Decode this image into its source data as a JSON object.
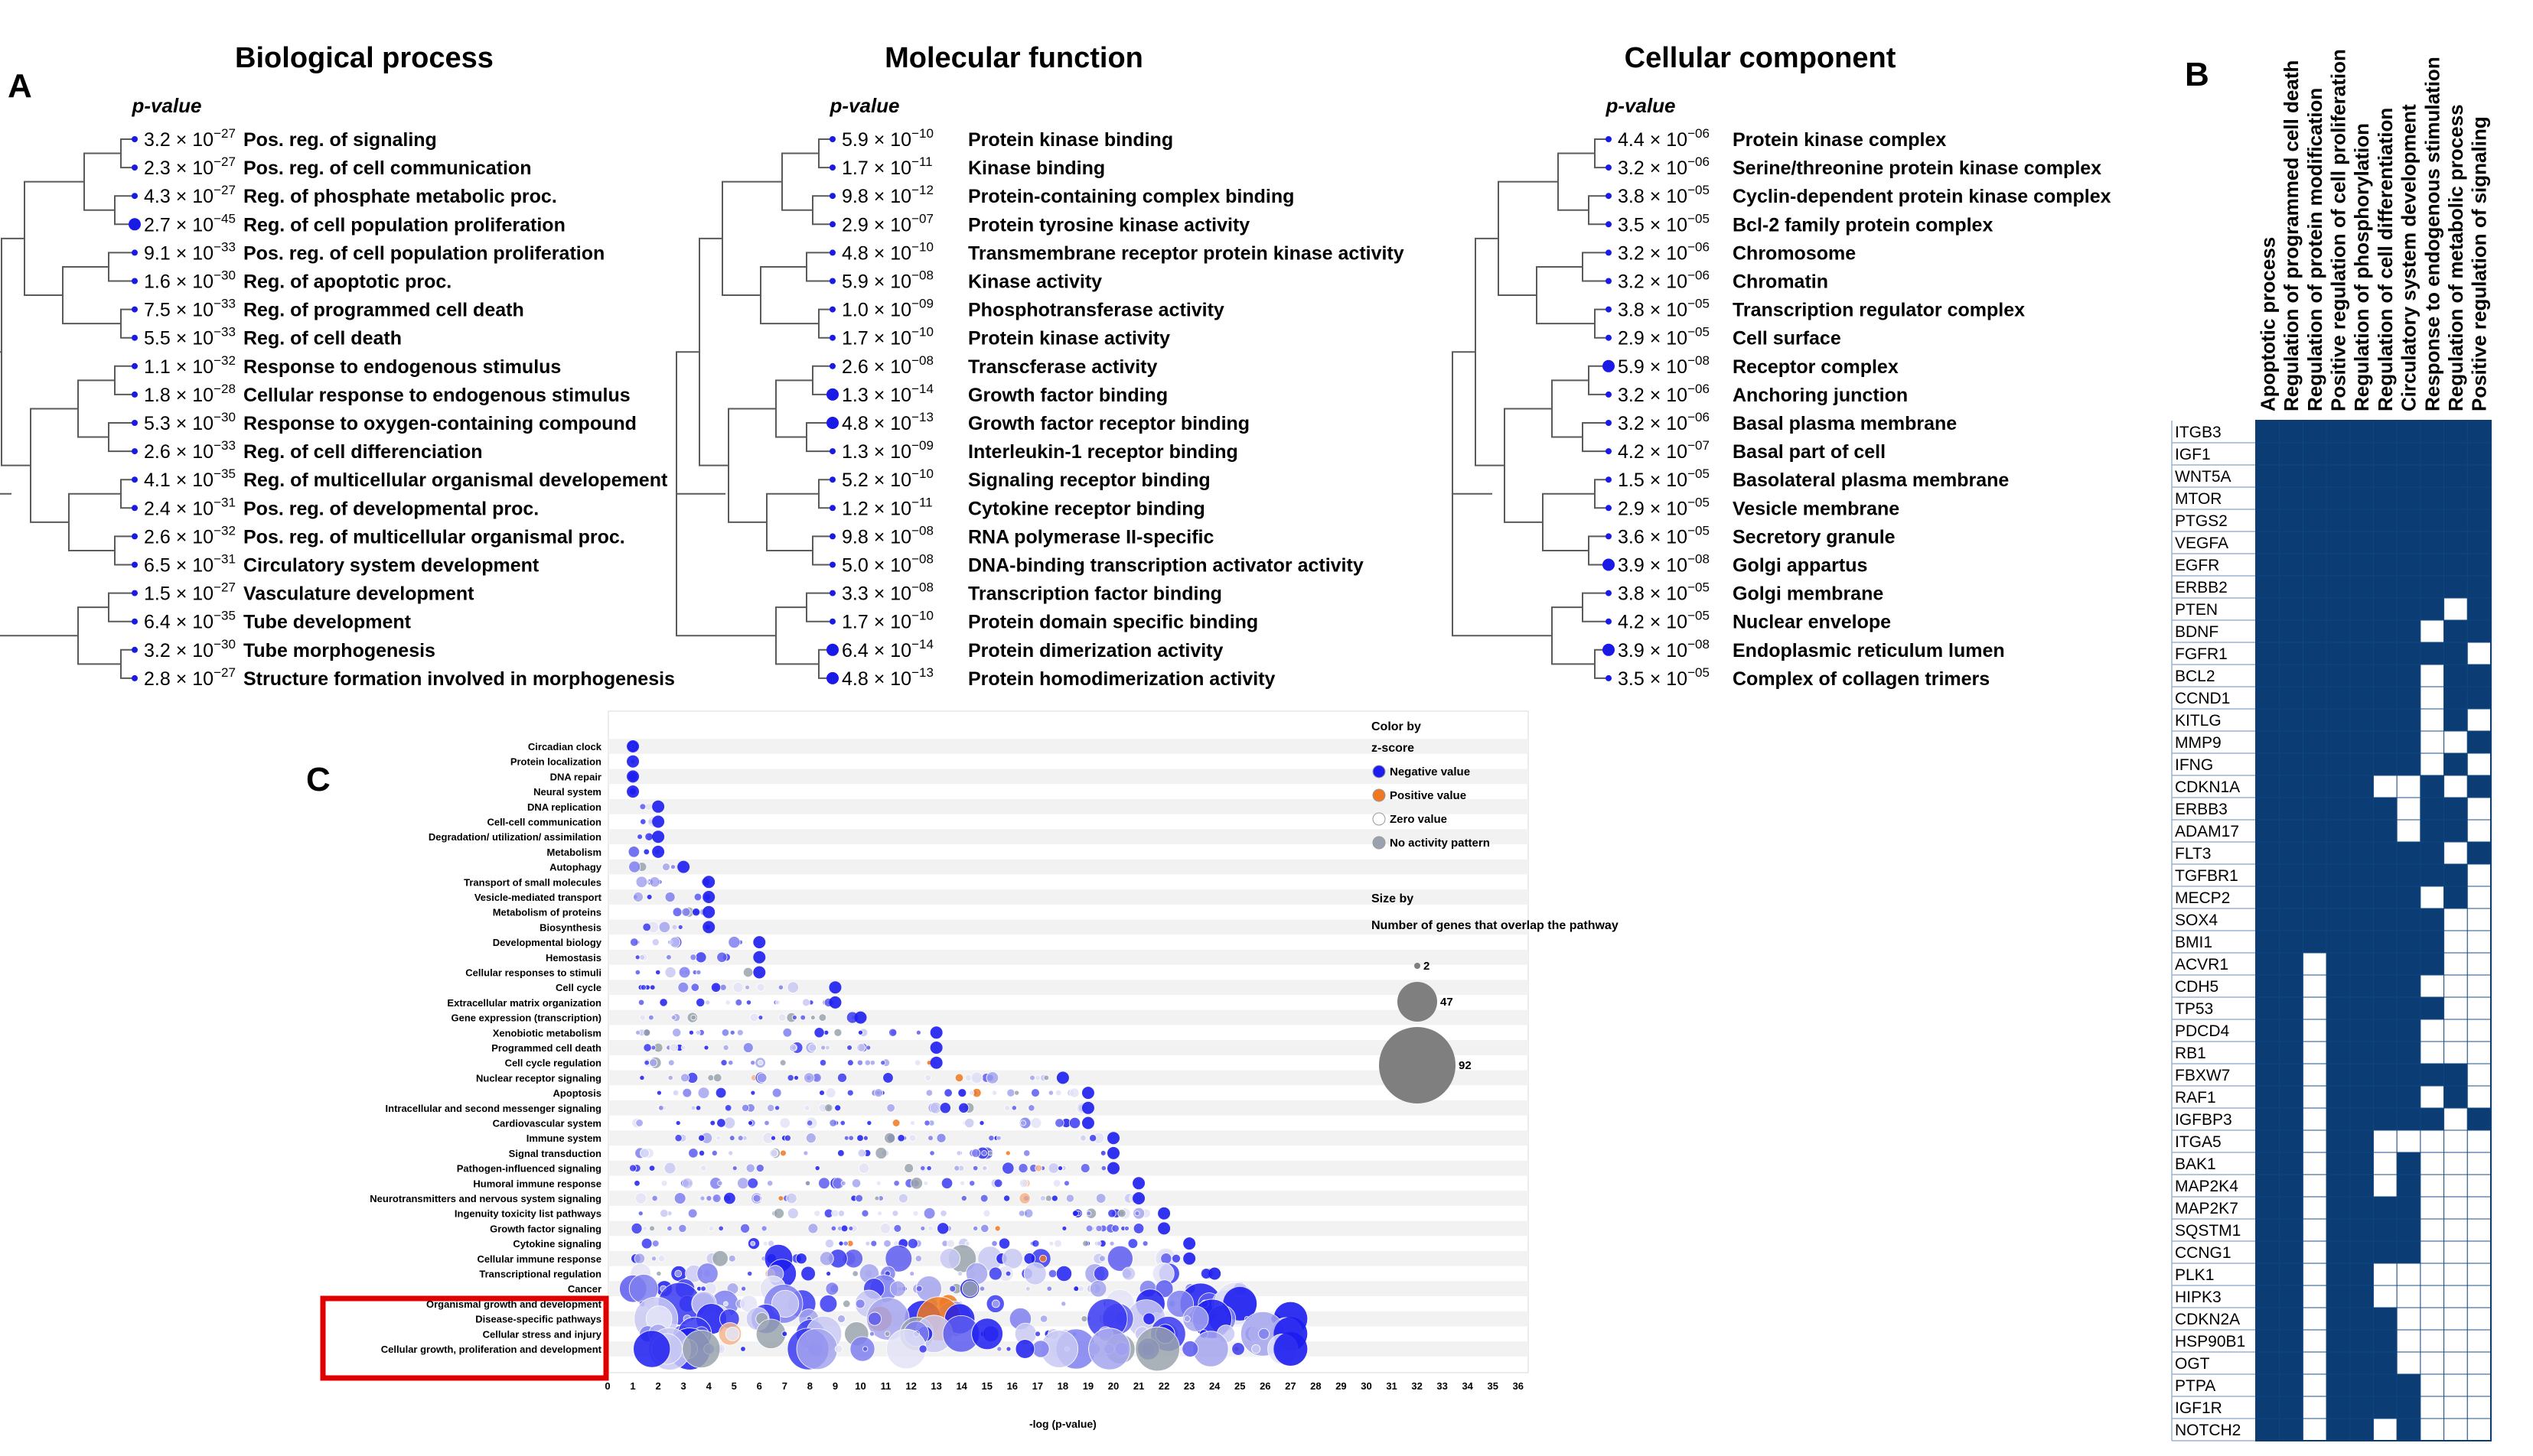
{
  "panels": {
    "A": {
      "label": "A",
      "groups": [
        {
          "title": "Biological process",
          "pheader": "p-value",
          "items": [
            {
              "m": "3.2",
              "e": "−27",
              "term": "Pos. reg. of signaling"
            },
            {
              "m": "2.3",
              "e": "−27",
              "term": "Pos. reg. of cell communication"
            },
            {
              "m": "4.3",
              "e": "−27",
              "term": "Reg. of phosphate metabolic proc."
            },
            {
              "m": "2.7",
              "e": "−45",
              "term": "Reg. of cell population proliferation"
            },
            {
              "m": "9.1",
              "e": "−33",
              "term": "Pos. reg. of cell population proliferation"
            },
            {
              "m": "1.6",
              "e": "−30",
              "term": "Reg. of apoptotic proc."
            },
            {
              "m": "7.5",
              "e": "−33",
              "term": "Reg. of programmed cell death"
            },
            {
              "m": "5.5",
              "e": "−33",
              "term": "Reg. of cell death"
            },
            {
              "m": "1.1",
              "e": "−32",
              "term": "Response to endogenous stimulus"
            },
            {
              "m": "1.8",
              "e": "−28",
              "term": "Cellular response to endogenous stimulus"
            },
            {
              "m": "5.3",
              "e": "−30",
              "term": "Response to oxygen-containing compound"
            },
            {
              "m": "2.6",
              "e": "−33",
              "term": "Reg. of cell differenciation"
            },
            {
              "m": "4.1",
              "e": "−35",
              "term": "Reg. of multicellular organismal developement"
            },
            {
              "m": "2.4",
              "e": "−31",
              "term": "Pos. reg. of developmental proc."
            },
            {
              "m": "2.6",
              "e": "−32",
              "term": "Pos. reg. of multicellular organismal proc."
            },
            {
              "m": "6.5",
              "e": "−31",
              "term": "Circulatory system development"
            },
            {
              "m": "1.5",
              "e": "−27",
              "term": "Vasculature development"
            },
            {
              "m": "6.4",
              "e": "−35",
              "term": "Tube development"
            },
            {
              "m": "3.2",
              "e": "−30",
              "term": "Tube morphogenesis"
            },
            {
              "m": "2.8",
              "e": "−27",
              "term": "Structure formation involved in morphogenesis"
            }
          ]
        },
        {
          "title": "Molecular function",
          "pheader": "p-value",
          "items": [
            {
              "m": "5.9",
              "e": "−10",
              "term": "Protein kinase binding"
            },
            {
              "m": "1.7",
              "e": "−11",
              "term": "Kinase binding"
            },
            {
              "m": "9.8",
              "e": "−12",
              "term": "Protein-containing complex binding"
            },
            {
              "m": "2.9",
              "e": "−07",
              "term": "Protein tyrosine kinase activity"
            },
            {
              "m": "4.8",
              "e": "−10",
              "term": "Transmembrane receptor protein kinase activity"
            },
            {
              "m": "5.9",
              "e": "−08",
              "term": "Kinase activity"
            },
            {
              "m": "1.0",
              "e": "−09",
              "term": "Phosphotransferase activity"
            },
            {
              "m": "1.7",
              "e": "−10",
              "term": "Protein kinase activity"
            },
            {
              "m": "2.6",
              "e": "−08",
              "term": "Transcferase activity"
            },
            {
              "m": "1.3",
              "e": "−14",
              "term": "Growth factor binding"
            },
            {
              "m": "4.8",
              "e": "−13",
              "term": "Growth factor receptor binding"
            },
            {
              "m": "1.3",
              "e": "−09",
              "term": "Interleukin-1 receptor binding"
            },
            {
              "m": "5.2",
              "e": "−10",
              "term": "Signaling receptor binding"
            },
            {
              "m": "1.2",
              "e": "−11",
              "term": "Cytokine receptor binding"
            },
            {
              "m": "9.8",
              "e": "−08",
              "term": "RNA polymerase II-specific"
            },
            {
              "m": "5.0",
              "e": "−08",
              "term": "DNA-binding transcription activator activity"
            },
            {
              "m": "3.3",
              "e": "−08",
              "term": "Transcription factor binding"
            },
            {
              "m": "1.7",
              "e": "−10",
              "term": "Protein domain specific binding"
            },
            {
              "m": "6.4",
              "e": "−14",
              "term": "Protein dimerization activity"
            },
            {
              "m": "4.8",
              "e": "−13",
              "term": "Protein homodimerization activity"
            }
          ]
        },
        {
          "title": "Cellular component",
          "pheader": "p-value",
          "items": [
            {
              "m": "4.4",
              "e": "−06",
              "term": "Protein kinase complex"
            },
            {
              "m": "3.2",
              "e": "−06",
              "term": "Serine/threonine protein kinase complex"
            },
            {
              "m": "3.8",
              "e": "−05",
              "term": "Cyclin-dependent protein kinase complex"
            },
            {
              "m": "3.5",
              "e": "−05",
              "term": "Bcl-2 family protein complex"
            },
            {
              "m": "3.2",
              "e": "−06",
              "term": "Chromosome"
            },
            {
              "m": "3.2",
              "e": "−06",
              "term": "Chromatin"
            },
            {
              "m": "3.8",
              "e": "−05",
              "term": "Transcription regulator complex"
            },
            {
              "m": "2.9",
              "e": "−05",
              "term": "Cell surface"
            },
            {
              "m": "5.9",
              "e": "−08",
              "term": "Receptor complex"
            },
            {
              "m": "3.2",
              "e": "−06",
              "term": "Anchoring junction"
            },
            {
              "m": "3.2",
              "e": "−06",
              "term": "Basal plasma membrane"
            },
            {
              "m": "4.2",
              "e": "−07",
              "term": "Basal part of cell"
            },
            {
              "m": "1.5",
              "e": "−05",
              "term": "Basolateral plasma membrane"
            },
            {
              "m": "2.9",
              "e": "−05",
              "term": "Vesicle membrane"
            },
            {
              "m": "3.6",
              "e": "−05",
              "term": "Secretory granule"
            },
            {
              "m": "3.9",
              "e": "−08",
              "term": "Golgi appartus"
            },
            {
              "m": "3.8",
              "e": "−05",
              "term": "Golgi membrane"
            },
            {
              "m": "4.2",
              "e": "−05",
              "term": "Nuclear envelope"
            },
            {
              "m": "3.9",
              "e": "−08",
              "term": "Endoplasmic reticulum lumen"
            },
            {
              "m": "3.5",
              "e": "−05",
              "term": "Complex of collagen trimers"
            }
          ]
        }
      ]
    },
    "B": {
      "label": "B",
      "columns": [
        "Apoptotic process",
        "Regulation of programmed cell death",
        "Regulation of protein modification",
        "Positive regulation of cell proliferation",
        "Regulation of phosphorylation",
        "Regulation of cell differentiation",
        "Circulatory system development",
        "Response to endogenous stimulation",
        "Regulation of metabolic process",
        "Positive regulation of signaling"
      ],
      "genes": [
        "ITGB3",
        "IGF1",
        "WNT5A",
        "MTOR",
        "PTGS2",
        "VEGFA",
        "EGFR",
        "ERBB2",
        "PTEN",
        "BDNF",
        "FGFR1",
        "BCL2",
        "CCND1",
        "KITLG",
        "MMP9",
        "IFNG",
        "CDKN1A",
        "ERBB3",
        "ADAM17",
        "FLT3",
        "TGFBR1",
        "MECP2",
        "SOX4",
        "BMI1",
        "ACVR1",
        "CDH5",
        "TP53",
        "PDCD4",
        "RB1",
        "FBXW7",
        "RAF1",
        "IGFBP3",
        "ITGA5",
        "BAK1",
        "MAP2K4",
        "MAP2K7",
        "SQSTM1",
        "CCNG1",
        "PLK1",
        "HIPK3",
        "CDKN2A",
        "HSP90B1",
        "OGT",
        "PTPA",
        "IGF1R",
        "NOTCH2"
      ],
      "matrix": [
        "1111111111",
        "1111111111",
        "1111111111",
        "1111111111",
        "1111111111",
        "1111111111",
        "1111111111",
        "1111111111",
        "1111111101",
        "1111111011",
        "1111111110",
        "1111111011",
        "1111111011",
        "1111111010",
        "1111111001",
        "1111111010",
        "1111100101",
        "1111110110",
        "1111110110",
        "1111111101",
        "1111111110",
        "1111111010",
        "1111111100",
        "1111111100",
        "1101111100",
        "1101111000",
        "1101111100",
        "1101111000",
        "1101111000",
        "1101111110",
        "1101111010",
        "1101111101",
        "1101100000",
        "1101101000",
        "1101101000",
        "1101111000",
        "1101111000",
        "1101111000",
        "1101100000",
        "1101100000",
        "1101110000",
        "1101110000",
        "1101110000",
        "1101111000",
        "1101111000",
        "1101101000"
      ]
    },
    "C": {
      "label": "C",
      "pathways": [
        "Circadian clock",
        "Protein localization",
        "DNA repair",
        "Neural system",
        "DNA replication",
        "Cell-cell communication",
        "Degradation/ utilization/ assimilation",
        "Metabolism",
        "Autophagy",
        "Transport of small molecules",
        "Vesicle-mediated transport",
        "Metabolism of proteins",
        "Biosynthesis",
        "Developmental biology",
        "Hemostasis",
        "Cellular responses to stimuli",
        "Cell cycle",
        "Extracellular matrix organization",
        "Gene expression (transcription)",
        "Xenobiotic metabolism",
        "Programmed cell death",
        "Cell cycle regulation",
        "Nuclear receptor signaling",
        "Apoptosis",
        "Intracellular and second messenger signaling",
        "Cardiovascular system",
        "Immune system",
        "Signal transduction",
        "Pathogen-influenced signaling",
        "Humoral immune response",
        "Neurotransmitters and nervous system signaling",
        "Ingenuity toxicity list pathways",
        "Growth factor signaling",
        "Cytokine signaling",
        "Cellular immune response",
        "Transcriptional regulation",
        "Cancer",
        "Organismal growth and development",
        "Disease-specific pathways",
        "Cellular stress and injury",
        "Cellular growth, proliferation and development"
      ],
      "max_x": [
        1,
        1,
        1,
        1,
        2,
        2,
        2,
        2,
        3,
        4,
        4,
        4,
        4,
        6,
        6,
        6,
        9,
        9,
        10,
        13,
        13,
        13,
        18,
        19,
        19,
        19,
        20,
        20,
        20,
        21,
        21,
        22,
        22,
        23,
        23,
        24,
        25,
        25,
        27,
        27,
        27
      ],
      "legend": {
        "color_title": "Color by",
        "color_sub": "z-score",
        "color_items": [
          {
            "label": "Negative value",
            "color": "#1c1cf0"
          },
          {
            "label": "Positive value",
            "color": "#f07820"
          },
          {
            "label": "Zero value",
            "color": "#ffffff"
          },
          {
            "label": "No activity pattern",
            "color": "#9aa3ad"
          }
        ],
        "size_title": "Size by",
        "size_sub": "Number of genes that overlap the pathway",
        "size_items": [
          2,
          47,
          92
        ]
      },
      "x_ticks": [
        "0",
        "1",
        "2",
        "3",
        "4",
        "5",
        "6",
        "7",
        "8",
        "9",
        "10",
        "11",
        "12",
        "13",
        "14",
        "15",
        "16",
        "17",
        "18",
        "19",
        "20",
        "21",
        "22",
        "23",
        "24",
        "25",
        "26",
        "27",
        "28",
        "29",
        "30",
        "31",
        "32",
        "33",
        "34",
        "35",
        "36"
      ],
      "xlabel": "-log (p-value)"
    }
  },
  "colors": {
    "blue_dot": "#1a1ae6",
    "heat_on": "#0b3c73",
    "heat_off": "#ffffff",
    "highlight_box": "#e00000"
  },
  "chart_data": {
    "type": "scatter",
    "title": "",
    "xlabel": "-log (p-value)",
    "ylabel": "",
    "xlim": [
      0,
      36
    ],
    "categories": [
      "Circadian clock",
      "Protein localization",
      "DNA repair",
      "Neural system",
      "DNA replication",
      "Cell-cell communication",
      "Degradation/ utilization/ assimilation",
      "Metabolism",
      "Autophagy",
      "Transport of small molecules",
      "Vesicle-mediated transport",
      "Metabolism of proteins",
      "Biosynthesis",
      "Developmental biology",
      "Hemostasis",
      "Cellular responses to stimuli",
      "Cell cycle",
      "Extracellular matrix organization",
      "Gene expression (transcription)",
      "Xenobiotic metabolism",
      "Programmed cell death",
      "Cell cycle regulation",
      "Nuclear receptor signaling",
      "Apoptosis",
      "Intracellular and second messenger signaling",
      "Cardiovascular system",
      "Immune system",
      "Signal transduction",
      "Pathogen-influenced signaling",
      "Humoral immune response",
      "Neurotransmitters and nervous system signaling",
      "Ingenuity toxicity list pathways",
      "Growth factor signaling",
      "Cytokine signaling",
      "Cellular immune response",
      "Transcriptional regulation",
      "Cancer",
      "Organismal growth and development",
      "Disease-specific pathways",
      "Cellular stress and injury",
      "Cellular growth, proliferation and development"
    ],
    "legend_position": "top-right",
    "grid": true
  }
}
